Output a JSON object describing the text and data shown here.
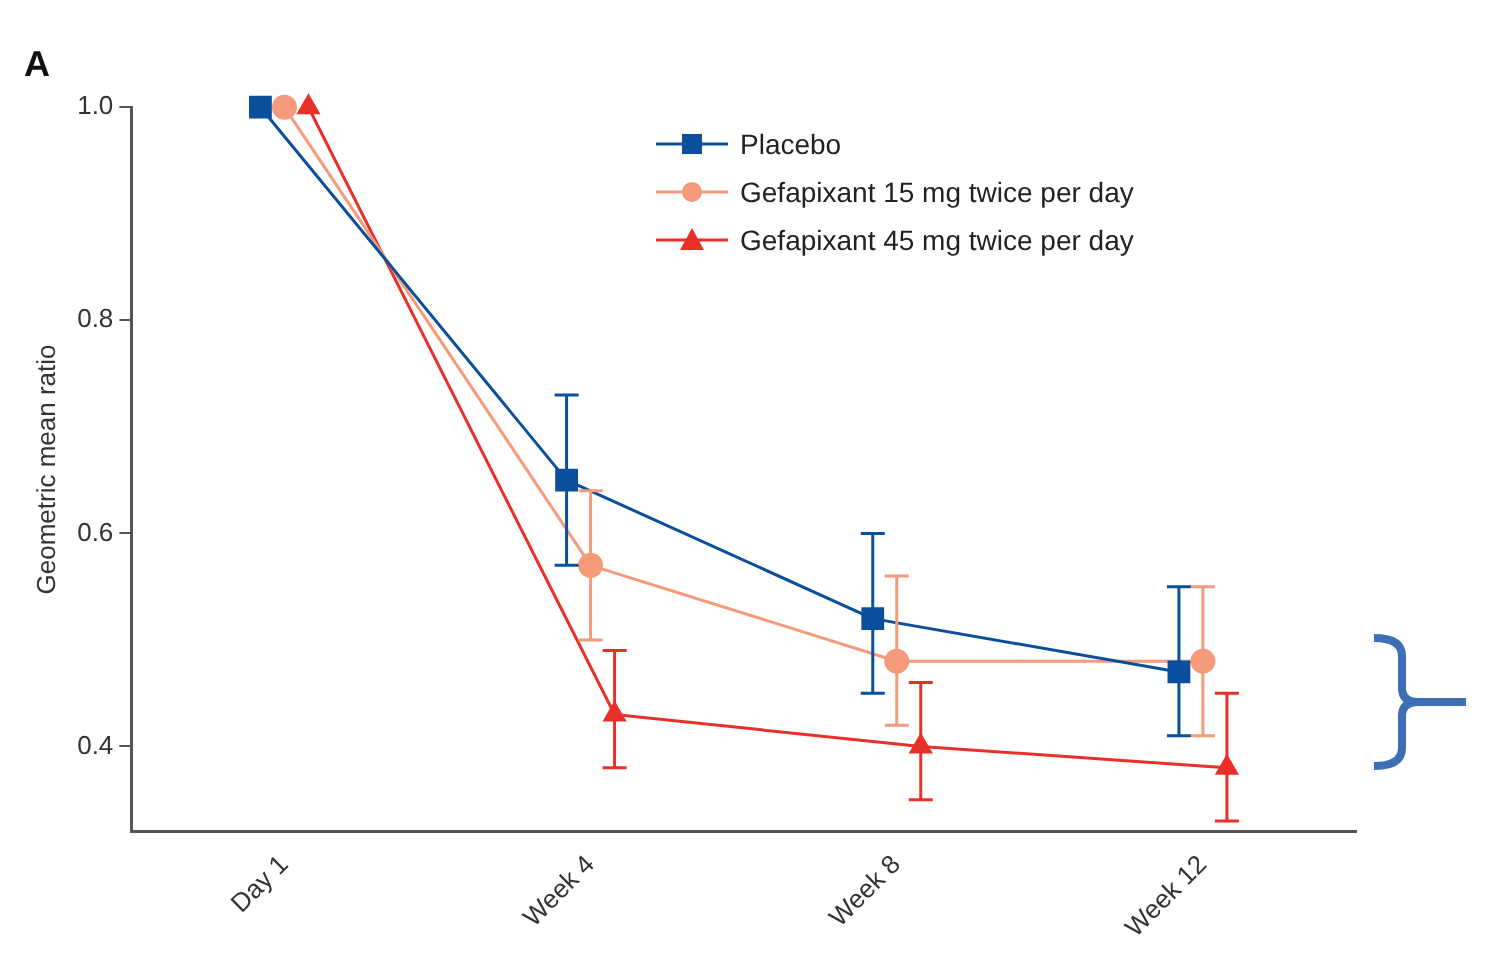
{
  "chart_data": {
    "type": "line",
    "title": "A",
    "ylabel": "Geometric mean ratio",
    "categories": [
      "Day 1",
      "Week 4",
      "Week 8",
      "Week 12"
    ],
    "series": [
      {
        "name": "Placebo",
        "color": "#0b4f9c",
        "marker": "square",
        "values": [
          1.0,
          0.65,
          0.52,
          0.47
        ],
        "errors": [
          null,
          [
            0.57,
            0.73
          ],
          [
            0.45,
            0.6
          ],
          [
            0.41,
            0.55
          ]
        ]
      },
      {
        "name": "Gefapixant 15 mg twice per day",
        "color": "#f59a7a",
        "marker": "circle",
        "values": [
          1.0,
          0.57,
          0.48,
          0.48
        ],
        "errors": [
          null,
          [
            0.5,
            0.64
          ],
          [
            0.42,
            0.56
          ],
          [
            0.41,
            0.55
          ]
        ]
      },
      {
        "name": "Gefapixant 45 mg twice per day",
        "color": "#e8302a",
        "marker": "triangle",
        "values": [
          1.0,
          0.43,
          0.4,
          0.38
        ],
        "errors": [
          null,
          [
            0.38,
            0.49
          ],
          [
            0.35,
            0.46
          ],
          [
            0.33,
            0.45
          ]
        ]
      }
    ],
    "ylim": [
      0.32,
      1.0
    ],
    "yticks": [
      0.4,
      0.6,
      0.8,
      {
        "value": 1.0,
        "label": "1.0"
      }
    ],
    "grid": false,
    "legend": "top right",
    "line_style": "solid"
  }
}
